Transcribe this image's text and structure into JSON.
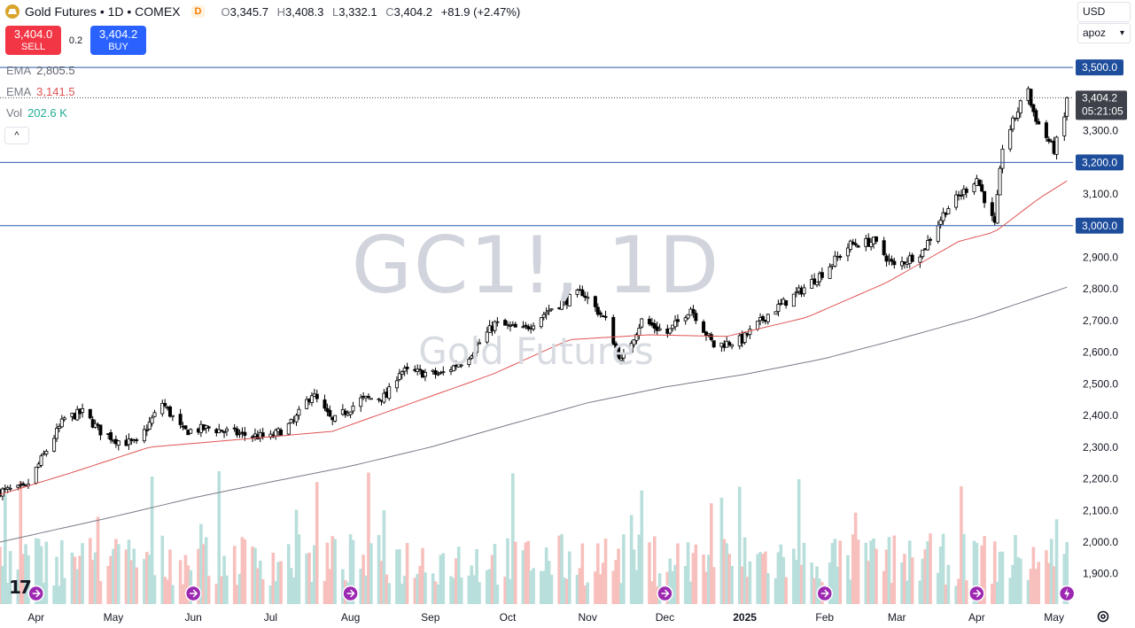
{
  "header": {
    "title": "Gold Futures • 1D • COMEX",
    "badge": "D",
    "o_label": "O",
    "o_value": "3,345.7",
    "h_label": "H",
    "h_value": "3,408.3",
    "l_label": "L",
    "l_value": "3,332.1",
    "c_label": "C",
    "c_value": "3,404.2",
    "change": "+81.9 (+2.47%)"
  },
  "trade": {
    "sell_price": "3,404.0",
    "sell_label": "SELL",
    "spread": "0.2",
    "buy_price": "3,404.2",
    "buy_label": "BUY"
  },
  "indicators": [
    {
      "name": "EMA",
      "value": "2,805.5"
    },
    {
      "name": "EMA",
      "value": "3,141.5"
    },
    {
      "name": "Vol",
      "value": "202.6 K"
    }
  ],
  "collapse_label": "^",
  "currency": "USD",
  "unit_label": "apoz",
  "watermark": {
    "symbol": "GC1!, 1D",
    "name": "Gold Futures"
  },
  "colors": {
    "up": "#26a69a",
    "down": "#ef5350",
    "candle": "#000000",
    "ema_fast": "#e05252",
    "ema_slow": "#787b86",
    "hline": "#2a5aa8",
    "label_bg": "#1e4d9c",
    "price_bg": "#3d4149",
    "vol_up": "#b8dfdb",
    "vol_down": "#f7c0bd"
  },
  "logo": "17",
  "chart_data": {
    "type": "candlestick",
    "y_range": [
      1860,
      3520
    ],
    "y_ticks": [
      "3,300.0",
      "3,100.0",
      "2,900.0",
      "2,800.0",
      "2,700.0",
      "2,600.0",
      "2,500.0",
      "2,400.0",
      "2,300.0",
      "2,200.0",
      "2,100.0",
      "2,000.0",
      "1,900.0"
    ],
    "y_tick_values": [
      3300,
      3100,
      2900,
      2800,
      2700,
      2600,
      2500,
      2400,
      2300,
      2200,
      2100,
      2000,
      1900
    ],
    "x_labels": [
      "Apr",
      "May",
      "Jun",
      "Jul",
      "Aug",
      "Sep",
      "Oct",
      "Nov",
      "Dec",
      "2025",
      "Feb",
      "Mar",
      "Apr",
      "May"
    ],
    "x_range": [
      "2024-03-18",
      "2025-05-08"
    ],
    "x_label_dates": [
      "2024-04-01",
      "2024-05-01",
      "2024-06-01",
      "2024-07-01",
      "2024-08-01",
      "2024-09-01",
      "2024-10-01",
      "2024-11-01",
      "2024-12-01",
      "2025-01-01",
      "2025-02-01",
      "2025-03-01",
      "2025-04-01",
      "2025-05-01"
    ],
    "horizontal_levels": [
      {
        "value": 3500,
        "label": "3,500.0"
      },
      {
        "value": 3200,
        "label": "3,200.0"
      },
      {
        "value": 3000,
        "label": "3,000.0"
      }
    ],
    "last_price": {
      "value": 3404.2,
      "label": "3,404.2",
      "countdown": "05:21:05"
    },
    "events_dates": [
      "2024-04-01",
      "2024-06-01",
      "2024-08-01",
      "2024-12-01",
      "2025-02-01",
      "2025-04-01"
    ],
    "close_points": [
      {
        "date": "2024-03-18",
        "close": 2160
      },
      {
        "date": "2024-03-28",
        "close": 2170
      },
      {
        "date": "2024-04-05",
        "close": 2290
      },
      {
        "date": "2024-04-12",
        "close": 2390
      },
      {
        "date": "2024-04-19",
        "close": 2410
      },
      {
        "date": "2024-04-26",
        "close": 2350
      },
      {
        "date": "2024-05-03",
        "close": 2320
      },
      {
        "date": "2024-05-10",
        "close": 2310
      },
      {
        "date": "2024-05-20",
        "close": 2440
      },
      {
        "date": "2024-05-28",
        "close": 2350
      },
      {
        "date": "2024-06-07",
        "close": 2360
      },
      {
        "date": "2024-06-20",
        "close": 2340
      },
      {
        "date": "2024-07-01",
        "close": 2330
      },
      {
        "date": "2024-07-10",
        "close": 2380
      },
      {
        "date": "2024-07-17",
        "close": 2470
      },
      {
        "date": "2024-07-25",
        "close": 2380
      },
      {
        "date": "2024-08-05",
        "close": 2450
      },
      {
        "date": "2024-08-15",
        "close": 2460
      },
      {
        "date": "2024-08-20",
        "close": 2540
      },
      {
        "date": "2024-09-05",
        "close": 2530
      },
      {
        "date": "2024-09-15",
        "close": 2580
      },
      {
        "date": "2024-09-26",
        "close": 2690
      },
      {
        "date": "2024-10-07",
        "close": 2670
      },
      {
        "date": "2024-10-18",
        "close": 2740
      },
      {
        "date": "2024-10-30",
        "close": 2790
      },
      {
        "date": "2024-11-08",
        "close": 2700
      },
      {
        "date": "2024-11-14",
        "close": 2570
      },
      {
        "date": "2024-11-22",
        "close": 2700
      },
      {
        "date": "2024-12-02",
        "close": 2660
      },
      {
        "date": "2024-12-11",
        "close": 2740
      },
      {
        "date": "2024-12-20",
        "close": 2620
      },
      {
        "date": "2024-12-31",
        "close": 2640
      },
      {
        "date": "2025-01-10",
        "close": 2720
      },
      {
        "date": "2025-01-22",
        "close": 2790
      },
      {
        "date": "2025-01-31",
        "close": 2850
      },
      {
        "date": "2025-02-11",
        "close": 2940
      },
      {
        "date": "2025-02-20",
        "close": 2950
      },
      {
        "date": "2025-02-28",
        "close": 2870
      },
      {
        "date": "2025-03-11",
        "close": 2920
      },
      {
        "date": "2025-03-20",
        "close": 3050
      },
      {
        "date": "2025-04-01",
        "close": 3150
      },
      {
        "date": "2025-04-08",
        "close": 3000
      },
      {
        "date": "2025-04-11",
        "close": 3250
      },
      {
        "date": "2025-04-21",
        "close": 3440
      },
      {
        "date": "2025-04-22",
        "close": 3380
      },
      {
        "date": "2025-04-25",
        "close": 3320
      },
      {
        "date": "2025-05-01",
        "close": 3240
      },
      {
        "date": "2025-05-05",
        "close": 3340
      },
      {
        "date": "2025-05-06",
        "close": 3404
      }
    ],
    "ema_fast_points": [
      {
        "date": "2024-03-18",
        "value": 2150
      },
      {
        "date": "2024-04-15",
        "value": 2220
      },
      {
        "date": "2024-05-15",
        "value": 2300
      },
      {
        "date": "2024-06-20",
        "value": 2325
      },
      {
        "date": "2024-07-25",
        "value": 2350
      },
      {
        "date": "2024-08-25",
        "value": 2440
      },
      {
        "date": "2024-09-25",
        "value": 2530
      },
      {
        "date": "2024-10-25",
        "value": 2640
      },
      {
        "date": "2024-11-25",
        "value": 2655
      },
      {
        "date": "2024-12-25",
        "value": 2650
      },
      {
        "date": "2025-01-25",
        "value": 2710
      },
      {
        "date": "2025-02-25",
        "value": 2820
      },
      {
        "date": "2025-03-25",
        "value": 2950
      },
      {
        "date": "2025-04-08",
        "value": 2980
      },
      {
        "date": "2025-04-25",
        "value": 3085
      },
      {
        "date": "2025-05-06",
        "value": 3141.5
      }
    ],
    "ema_slow_points": [
      {
        "date": "2024-03-18",
        "value": 2000
      },
      {
        "date": "2024-05-01",
        "value": 2080
      },
      {
        "date": "2024-06-01",
        "value": 2140
      },
      {
        "date": "2024-07-01",
        "value": 2190
      },
      {
        "date": "2024-08-01",
        "value": 2240
      },
      {
        "date": "2024-09-01",
        "value": 2300
      },
      {
        "date": "2024-10-01",
        "value": 2370
      },
      {
        "date": "2024-11-01",
        "value": 2440
      },
      {
        "date": "2024-12-01",
        "value": 2490
      },
      {
        "date": "2025-01-01",
        "value": 2530
      },
      {
        "date": "2025-02-01",
        "value": 2580
      },
      {
        "date": "2025-03-01",
        "value": 2640
      },
      {
        "date": "2025-04-01",
        "value": 2710
      },
      {
        "date": "2025-05-06",
        "value": 2805.5
      }
    ]
  }
}
